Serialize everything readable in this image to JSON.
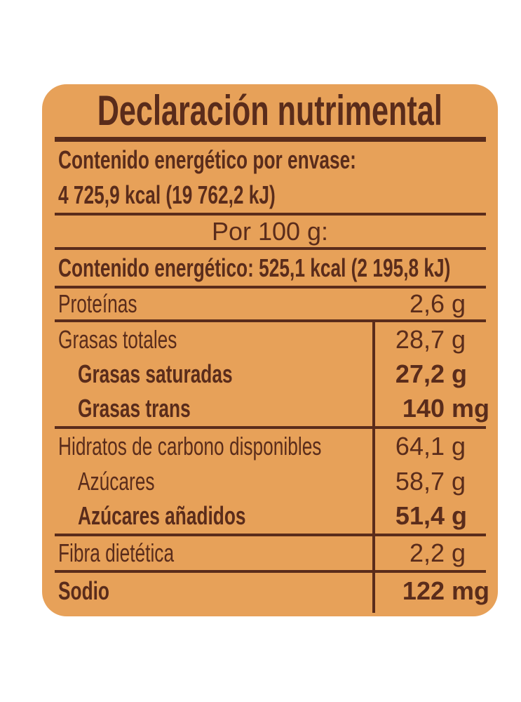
{
  "title": "Declaración nutrimental",
  "colors": {
    "page_bg": "#FFFFFF",
    "card_bg": "#E7A159",
    "text_brown": "#5A2C1B"
  },
  "per_package": {
    "heading": "Contenido energético por envase:",
    "value": "4 725,9 kcal (19 762,2 kJ)"
  },
  "per_100g": {
    "heading": "Por 100 g:",
    "energy_line": "Contenido energético: 525,1 kcal (2 195,8 kJ)"
  },
  "rows": [
    {
      "label": "Proteínas",
      "amount": "2,6",
      "unit": "g"
    },
    {
      "label": "Grasas totales",
      "amount": "28,7",
      "unit": "g"
    },
    {
      "label": "Grasas saturadas",
      "amount": "27,2",
      "unit": "g"
    },
    {
      "label": "Grasas trans",
      "amount": "140",
      "unit": "mg"
    },
    {
      "label": "Hidratos de carbono disponibles",
      "amount": "64,1",
      "unit": "g"
    },
    {
      "label": "Azúcares",
      "amount": "58,7",
      "unit": "g"
    },
    {
      "label": "Azúcares añadidos",
      "amount": "51,4",
      "unit": "g"
    },
    {
      "label": "Fibra dietética",
      "amount": "2,2",
      "unit": "g"
    },
    {
      "label": "Sodio",
      "amount": "122",
      "unit": "mg"
    }
  ]
}
